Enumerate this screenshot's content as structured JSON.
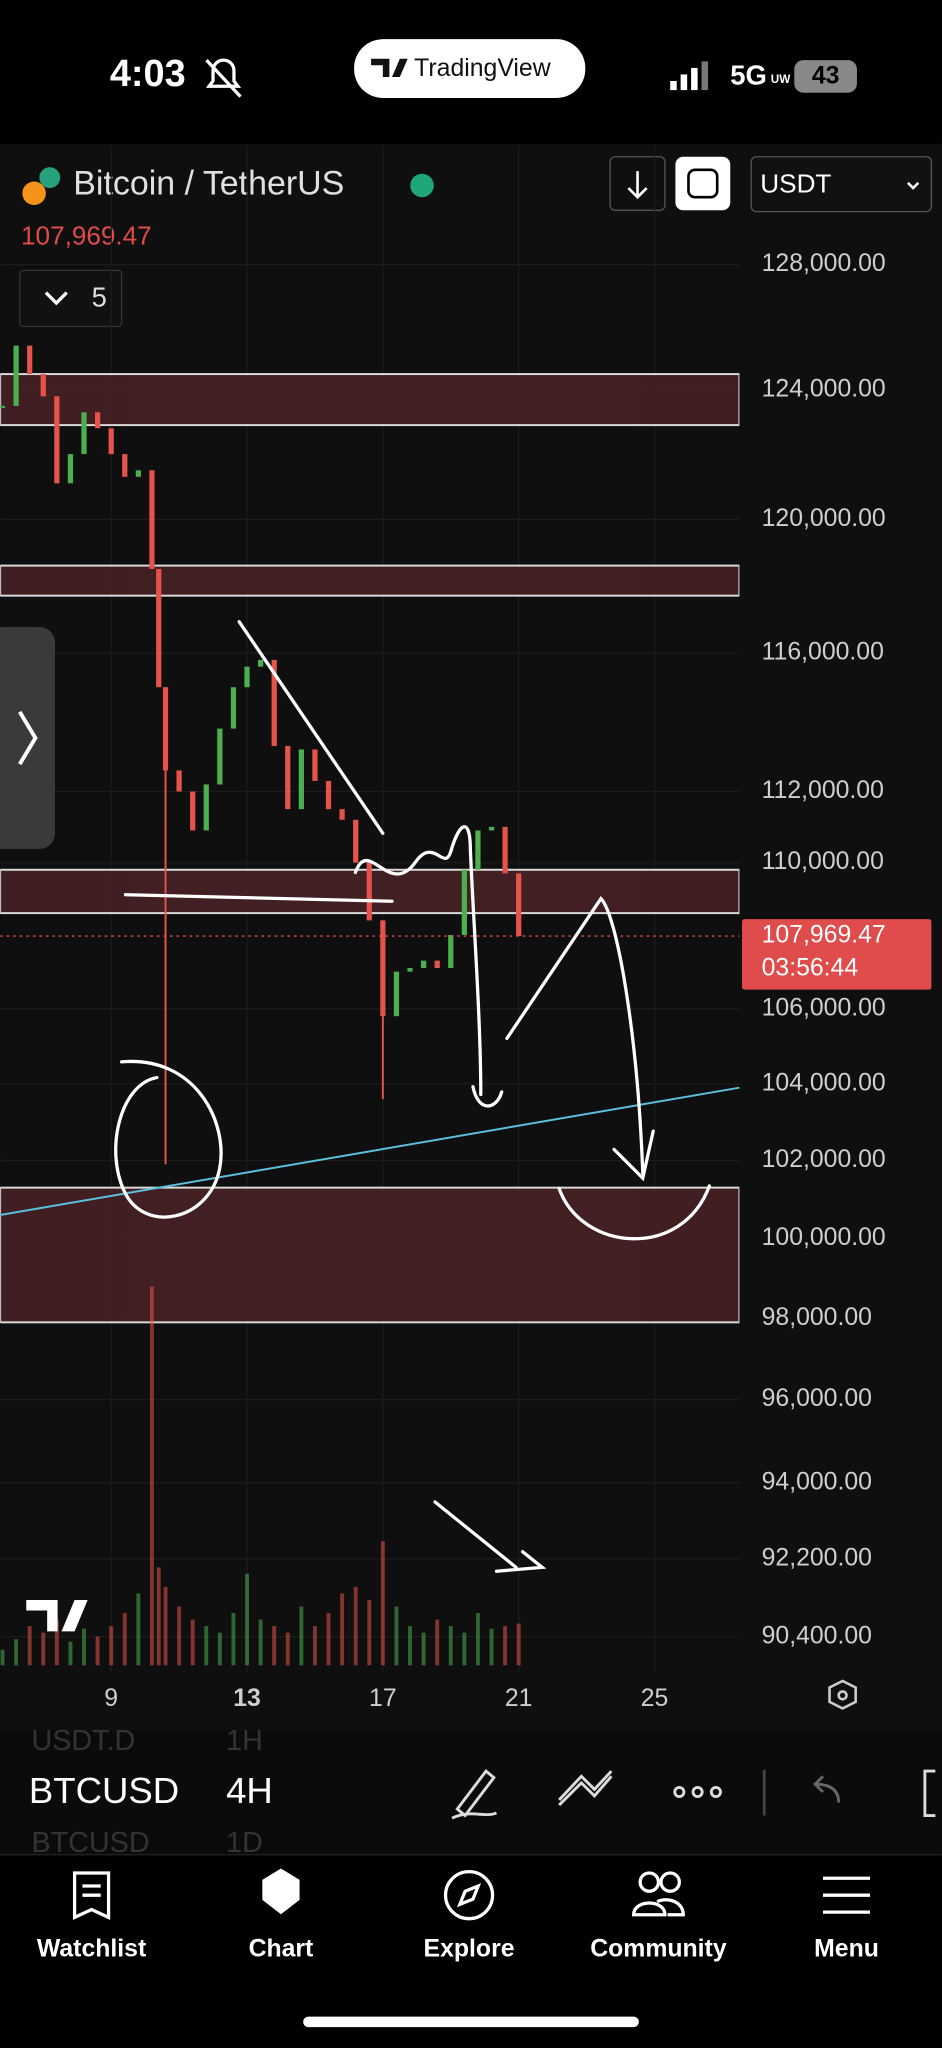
{
  "status_bar": {
    "time": "4:03",
    "network": "5G",
    "network_sub": "UW",
    "battery": "43"
  },
  "app_pill": "TradingView",
  "header": {
    "symbol": "Bitcoin / TetherUS",
    "indicator_count": "5",
    "currency": "USDT"
  },
  "chart_data": {
    "type": "candlestick",
    "x": [
      5.8,
      6.2,
      6.6,
      7.0,
      7.4,
      7.8,
      8.2,
      8.6,
      9.0,
      9.4,
      9.8,
      10.2,
      10.4,
      10.6,
      11.0,
      11.4,
      11.8,
      12.2,
      12.6,
      13.0,
      13.4,
      13.8,
      14.2,
      14.6,
      15.0,
      15.4,
      15.8,
      16.2,
      16.6,
      17.0,
      17.4,
      17.8,
      18.2,
      18.6,
      19.0,
      19.4,
      19.8,
      20.2,
      20.6,
      21.0
    ],
    "values": [
      123500,
      125400,
      124500,
      123800,
      121100,
      122000,
      123300,
      122800,
      122000,
      121300,
      121500,
      118500,
      115000,
      112600,
      112000,
      110900,
      112200,
      113800,
      115000,
      115600,
      115800,
      113300,
      111500,
      113200,
      112300,
      111500,
      111200,
      110000,
      108400,
      105800,
      107000,
      107100,
      107300,
      107100,
      108000,
      109800,
      110900,
      111000,
      109700,
      107969.47
    ],
    "lows": [
      null,
      null,
      null,
      null,
      null,
      null,
      null,
      null,
      null,
      null,
      null,
      null,
      null,
      101900,
      null,
      null,
      null,
      null,
      null,
      null,
      null,
      null,
      null,
      null,
      null,
      null,
      null,
      null,
      null,
      103600,
      null,
      null,
      null,
      null,
      null,
      null,
      null,
      null,
      null,
      null
    ],
    "volumes": [
      12,
      20,
      30,
      25,
      35,
      18,
      28,
      22,
      30,
      40,
      55,
      290,
      75,
      60,
      45,
      35,
      30,
      25,
      40,
      70,
      35,
      30,
      25,
      45,
      30,
      40,
      55,
      60,
      50,
      95,
      45,
      30,
      25,
      35,
      30,
      25,
      40,
      28,
      30,
      32
    ],
    "up_color": "#4caf50",
    "down_color": "#e5534b",
    "xlim": [
      5.73,
      27.5
    ],
    "xticks": [
      9,
      13,
      17,
      21,
      25
    ],
    "ylim": [
      89600,
      131900
    ],
    "log_scale": true,
    "grid": true,
    "yticks": [
      {
        "value": 128000,
        "label": "128,000.00"
      },
      {
        "value": 124000,
        "label": "124,000.00"
      },
      {
        "value": 120000,
        "label": "120,000.00"
      },
      {
        "value": 116000,
        "label": "116,000.00"
      },
      {
        "value": 112000,
        "label": "112,000.00"
      },
      {
        "value": 110000,
        "label": "110,000.00"
      },
      {
        "value": 106000,
        "label": "106,000.00"
      },
      {
        "value": 104000,
        "label": "104,000.00"
      },
      {
        "value": 102000,
        "label": "102,000.00"
      },
      {
        "value": 100000,
        "label": "100,000.00"
      },
      {
        "value": 98000,
        "label": "98,000.00"
      },
      {
        "value": 96000,
        "label": "96,000.00"
      },
      {
        "value": 94000,
        "label": "94,000.00"
      },
      {
        "value": 92200,
        "label": "92,200.00"
      },
      {
        "value": 90400,
        "label": "90,400.00"
      }
    ],
    "zones": [
      [
        124500,
        122900
      ],
      [
        118600,
        117700
      ],
      [
        109800,
        108600
      ],
      [
        101300,
        97900
      ]
    ],
    "zone_color": "#4a2226",
    "trendline": {
      "x": [
        5.73,
        27.5
      ],
      "y": [
        100600,
        103900
      ],
      "color": "#5bc0de"
    },
    "last_price": {
      "value": 107969.47,
      "label": "107,969.47"
    },
    "countdown": "03:56:44"
  },
  "toolbar": {
    "hidden_above": [
      "USDT.D",
      "1H"
    ],
    "symbol": "BTCUSD",
    "interval": "4H",
    "hidden_below": [
      "BTCUSD",
      "1D"
    ]
  },
  "nav": {
    "items": [
      "Watchlist",
      "Chart",
      "Explore",
      "Community",
      "Menu"
    ]
  }
}
